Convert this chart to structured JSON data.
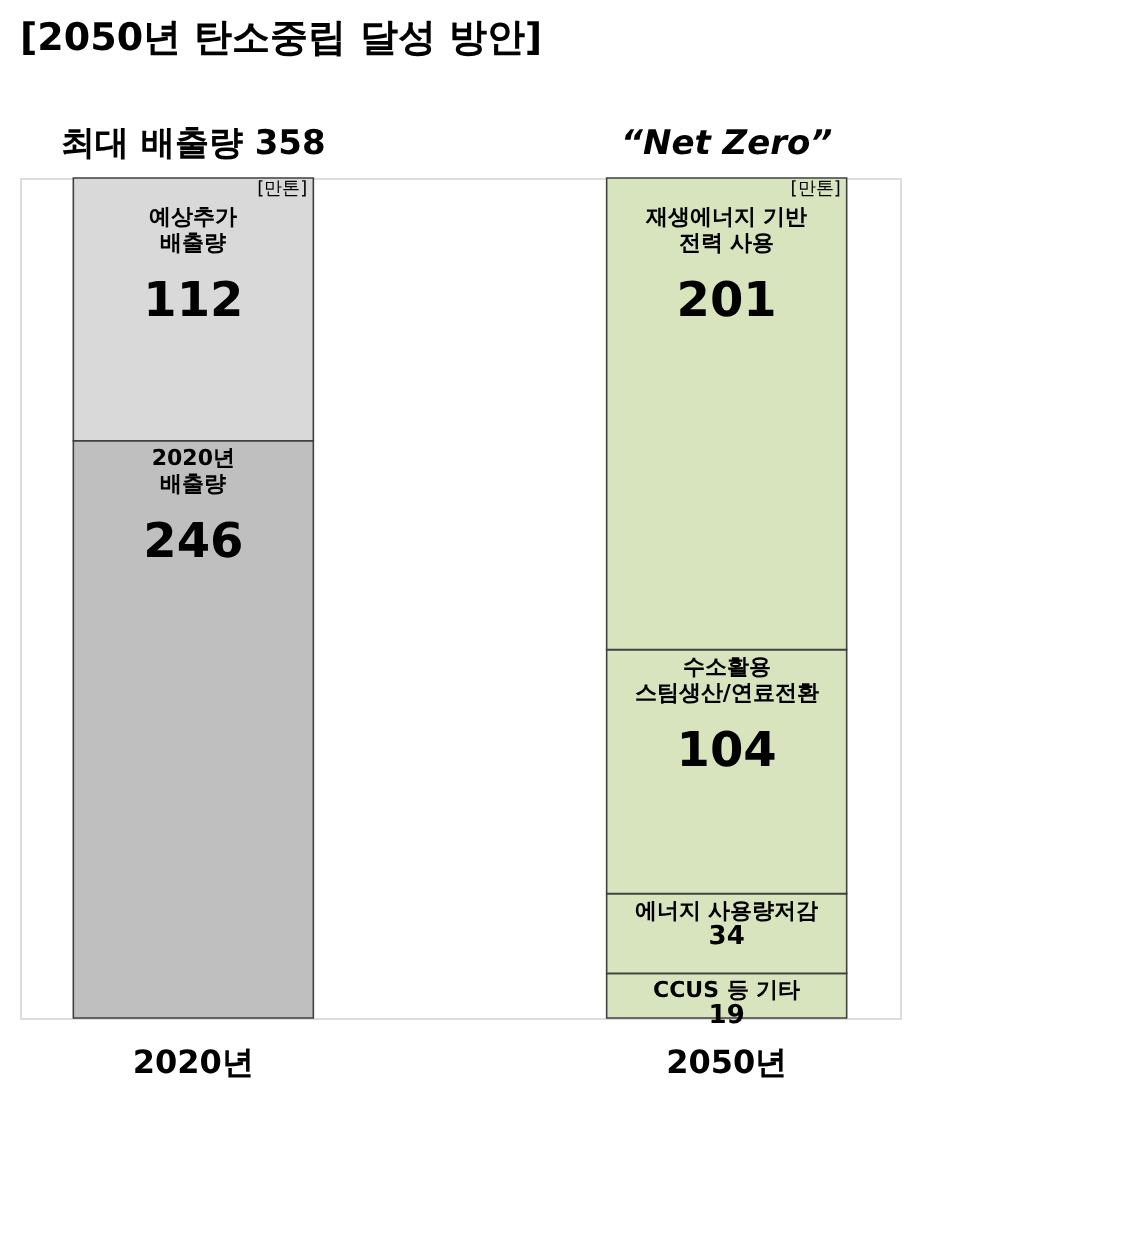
{
  "chart_data": {
    "type": "bar",
    "stacked": true,
    "title": "[2050년 탄소중립 달성 방안]",
    "categories": [
      "2020년",
      "2050년"
    ],
    "series": [
      {
        "name": "2020년\n배출량",
        "color": "#bfbfbf",
        "values": [
          246,
          null
        ]
      },
      {
        "name": "예상추가\n배출량",
        "color": "#d9d9d9",
        "values": [
          112,
          null
        ]
      },
      {
        "name": "CCUS 등 기타",
        "color": "#d7e4bd",
        "values": [
          null,
          19
        ]
      },
      {
        "name": "에너지 사용량저감",
        "color": "#d7e4bd",
        "values": [
          null,
          34
        ]
      },
      {
        "name": "수소활용\n스팀생산/연료전환",
        "color": "#d7e4bd",
        "values": [
          null,
          104
        ]
      },
      {
        "name": "재생에너지 기반\n전력 사용",
        "color": "#d7e4bd",
        "values": [
          null,
          201
        ]
      }
    ],
    "data_labels": true,
    "ylim": [
      0,
      358
    ],
    "tick_labels": "x",
    "annotations": [
      {
        "text": "최대 배출량 358",
        "x": "2020년",
        "y": 358
      },
      {
        "text": "“Net Zero”",
        "x": "2050년",
        "y": 358
      },
      "[만톤]",
      "[만톤]"
    ]
  }
}
